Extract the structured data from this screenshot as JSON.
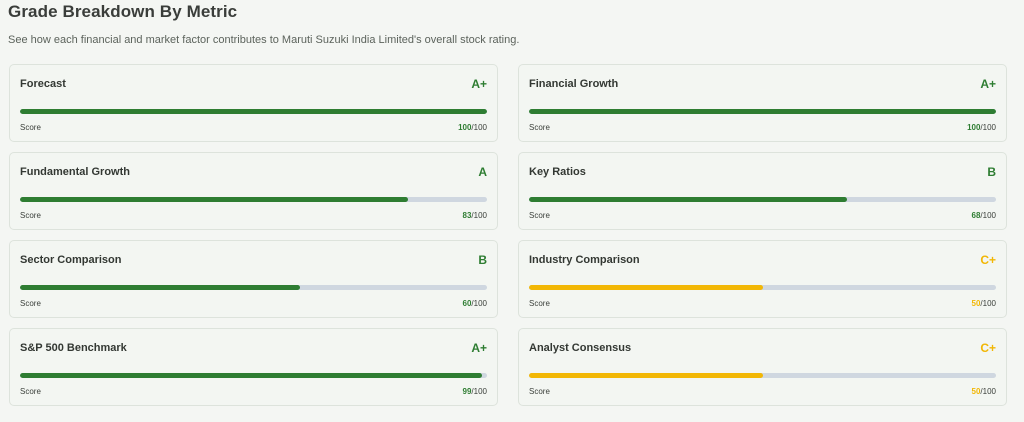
{
  "header": {
    "title": "Grade Breakdown By Metric",
    "subtitle": "See how each financial and market factor contributes to Maruti Suzuki India Limited's overall stock rating."
  },
  "colors": {
    "green": "#2e7d32",
    "amber": "#f2b705",
    "track": "#cfd7e0"
  },
  "score_label": "Score",
  "score_max": "/100",
  "metrics": [
    {
      "name": "Forecast",
      "grade": "A+",
      "score": 100,
      "score_text": "100",
      "color": "green"
    },
    {
      "name": "Financial Growth",
      "grade": "A+",
      "score": 100,
      "score_text": "100",
      "color": "green"
    },
    {
      "name": "Fundamental Growth",
      "grade": "A",
      "score": 83,
      "score_text": "83",
      "color": "green"
    },
    {
      "name": "Key Ratios",
      "grade": "B",
      "score": 68,
      "score_text": "68",
      "color": "green"
    },
    {
      "name": "Sector Comparison",
      "grade": "B",
      "score": 60,
      "score_text": "60",
      "color": "green"
    },
    {
      "name": "Industry Comparison",
      "grade": "C+",
      "score": 50,
      "score_text": "50",
      "color": "amber"
    },
    {
      "name": "S&P 500 Benchmark",
      "grade": "A+",
      "score": 99,
      "score_text": "99",
      "color": "green"
    },
    {
      "name": "Analyst Consensus",
      "grade": "C+",
      "score": 50,
      "score_text": "50",
      "color": "amber"
    }
  ]
}
